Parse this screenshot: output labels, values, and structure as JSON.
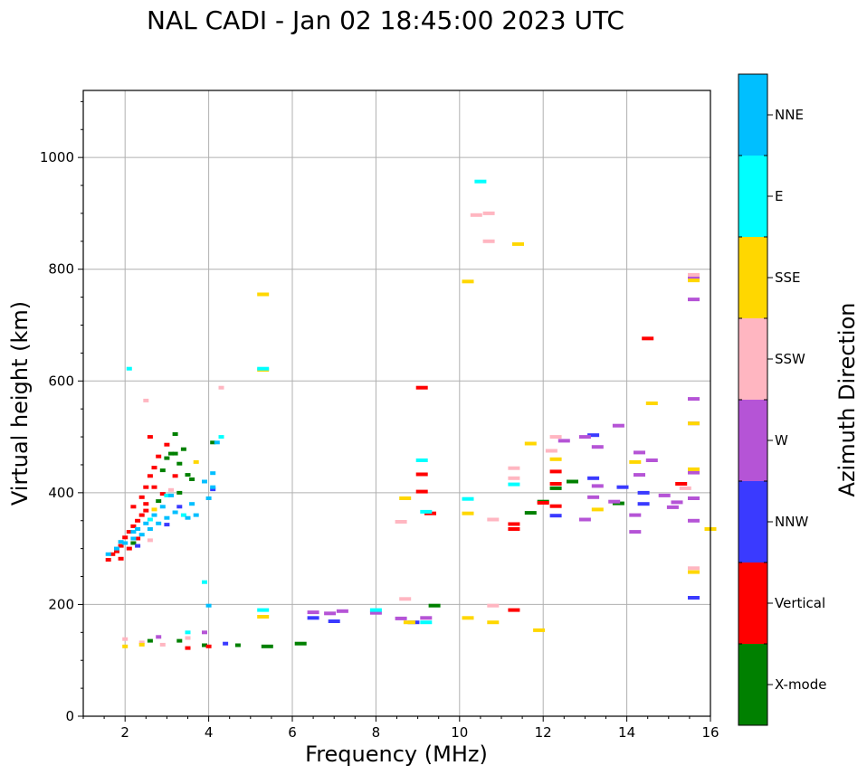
{
  "chart_data": {
    "type": "scatter",
    "title": "NAL CADI - Jan 02 18:45:00 2023 UTC",
    "xlabel": "Frequency (MHz)",
    "ylabel": "Virtual height (km)",
    "xlim": [
      1,
      16
    ],
    "ylim": [
      0,
      1120
    ],
    "xticks": [
      "2",
      "4",
      "6",
      "8",
      "10",
      "12",
      "14",
      "16"
    ],
    "yticks": [
      "0",
      "200",
      "400",
      "600",
      "800",
      "1000"
    ],
    "grid": true,
    "colorbar": {
      "label": "Azimuth Direction",
      "categories": [
        {
          "name": "X-mode",
          "color": "#008000"
        },
        {
          "name": "Vertical",
          "color": "#ff0000"
        },
        {
          "name": "NNW",
          "color": "#3a3aff"
        },
        {
          "name": "W",
          "color": "#b554d6"
        },
        {
          "name": "SSW",
          "color": "#ffb6c1"
        },
        {
          "name": "SSE",
          "color": "#ffd700"
        },
        {
          "name": "E",
          "color": "#00ffff"
        },
        {
          "name": "NNE",
          "color": "#00bfff"
        }
      ]
    },
    "series": [
      {
        "name": "X-mode",
        "points": [
          [
            3.0,
            462
          ],
          [
            3.5,
            432
          ],
          [
            3.3,
            400
          ],
          [
            4.1,
            490
          ],
          [
            3.2,
            470
          ],
          [
            2.9,
            440
          ],
          [
            3.6,
            424
          ],
          [
            12.7,
            420
          ],
          [
            12.0,
            384
          ],
          [
            13.8,
            381
          ],
          [
            9.4,
            198
          ],
          [
            11.7,
            364
          ],
          [
            6.2,
            130
          ],
          [
            4.7,
            127
          ],
          [
            5.4,
            125
          ],
          [
            3.3,
            135
          ],
          [
            3.9,
            127
          ],
          [
            2.6,
            135
          ],
          [
            3.1,
            470
          ],
          [
            2.8,
            385
          ],
          [
            3.3,
            452
          ],
          [
            2.2,
            310
          ],
          [
            12.3,
            408
          ],
          [
            3.2,
            505
          ],
          [
            3.4,
            478
          ]
        ]
      },
      {
        "name": "Vertical",
        "points": [
          [
            1.8,
            295
          ],
          [
            1.9,
            305
          ],
          [
            2.1,
            330
          ],
          [
            2.2,
            340
          ],
          [
            2.3,
            350
          ],
          [
            2.4,
            360
          ],
          [
            2.5,
            410
          ],
          [
            2.6,
            430
          ],
          [
            2.7,
            445
          ],
          [
            2.8,
            465
          ],
          [
            2.2,
            375
          ],
          [
            2.0,
            320
          ],
          [
            2.5,
            380
          ],
          [
            2.6,
            500
          ],
          [
            1.7,
            290
          ],
          [
            1.9,
            282
          ],
          [
            2.3,
            318
          ],
          [
            9.1,
            588
          ],
          [
            9.1,
            433
          ],
          [
            9.1,
            402
          ],
          [
            9.3,
            363
          ],
          [
            11.3,
            344
          ],
          [
            11.3,
            335
          ],
          [
            11.3,
            190
          ],
          [
            12.0,
            382
          ],
          [
            12.3,
            438
          ],
          [
            12.3,
            416
          ],
          [
            12.3,
            376
          ],
          [
            14.5,
            676
          ],
          [
            15.3,
            416
          ],
          [
            4.0,
            125
          ],
          [
            3.5,
            122
          ],
          [
            1.6,
            280
          ],
          [
            2.4,
            392
          ],
          [
            2.1,
            300
          ],
          [
            2.7,
            410
          ],
          [
            2.9,
            398
          ],
          [
            3.2,
            430
          ],
          [
            3.0,
            486
          ],
          [
            2.5,
            368
          ]
        ]
      },
      {
        "name": "NNW",
        "points": [
          [
            6.5,
            176
          ],
          [
            7.0,
            170
          ],
          [
            8.9,
            168
          ],
          [
            13.2,
            503
          ],
          [
            13.2,
            426
          ],
          [
            13.9,
            410
          ],
          [
            14.4,
            400
          ],
          [
            14.4,
            380
          ],
          [
            15.6,
            212
          ],
          [
            12.3,
            359
          ],
          [
            3.3,
            375
          ],
          [
            3.0,
            343
          ],
          [
            4.1,
            406
          ],
          [
            2.3,
            305
          ],
          [
            4.4,
            130
          ]
        ]
      },
      {
        "name": "W",
        "points": [
          [
            6.5,
            186
          ],
          [
            6.9,
            184
          ],
          [
            7.2,
            188
          ],
          [
            8.0,
            185
          ],
          [
            8.6,
            175
          ],
          [
            9.2,
            176
          ],
          [
            13.0,
            500
          ],
          [
            13.3,
            482
          ],
          [
            13.8,
            520
          ],
          [
            14.3,
            472
          ],
          [
            14.3,
            432
          ],
          [
            14.6,
            458
          ],
          [
            14.2,
            360
          ],
          [
            14.2,
            330
          ],
          [
            15.6,
            568
          ],
          [
            15.6,
            524
          ],
          [
            15.6,
            436
          ],
          [
            15.6,
            390
          ],
          [
            15.6,
            350
          ],
          [
            15.6,
            746
          ],
          [
            15.6,
            784
          ],
          [
            12.5,
            493
          ],
          [
            13.0,
            352
          ],
          [
            13.3,
            412
          ],
          [
            15.2,
            383
          ],
          [
            15.1,
            374
          ],
          [
            14.9,
            395
          ],
          [
            13.2,
            392
          ],
          [
            13.7,
            384
          ],
          [
            2.8,
            142
          ],
          [
            3.9,
            150
          ]
        ]
      },
      {
        "name": "SSW",
        "points": [
          [
            10.4,
            897
          ],
          [
            10.7,
            900
          ],
          [
            10.7,
            850
          ],
          [
            8.6,
            348
          ],
          [
            8.7,
            210
          ],
          [
            10.8,
            352
          ],
          [
            11.3,
            444
          ],
          [
            11.3,
            426
          ],
          [
            12.3,
            500
          ],
          [
            15.6,
            265
          ],
          [
            15.6,
            790
          ],
          [
            15.4,
            408
          ],
          [
            2.5,
            565
          ],
          [
            4.3,
            588
          ],
          [
            2.0,
            138
          ],
          [
            2.4,
            132
          ],
          [
            2.9,
            128
          ],
          [
            3.5,
            140
          ],
          [
            10.8,
            198
          ],
          [
            12.2,
            475
          ],
          [
            3.1,
            405
          ],
          [
            2.6,
            315
          ],
          [
            1.8,
            300
          ]
        ]
      },
      {
        "name": "SSE",
        "points": [
          [
            5.3,
            755
          ],
          [
            5.3,
            620
          ],
          [
            10.2,
            778
          ],
          [
            11.4,
            845
          ],
          [
            11.7,
            488
          ],
          [
            8.7,
            390
          ],
          [
            8.8,
            168
          ],
          [
            10.2,
            363
          ],
          [
            10.2,
            176
          ],
          [
            10.8,
            168
          ],
          [
            11.9,
            154
          ],
          [
            13.3,
            370
          ],
          [
            14.2,
            455
          ],
          [
            14.6,
            560
          ],
          [
            15.6,
            258
          ],
          [
            15.6,
            442
          ],
          [
            15.6,
            524
          ],
          [
            15.6,
            780
          ],
          [
            16.0,
            335
          ],
          [
            12.3,
            460
          ],
          [
            5.3,
            178
          ],
          [
            2.0,
            125
          ],
          [
            2.4,
            128
          ],
          [
            3.7,
            455
          ],
          [
            2.7,
            370
          ]
        ]
      },
      {
        "name": "E",
        "points": [
          [
            10.5,
            957
          ],
          [
            9.1,
            458
          ],
          [
            9.2,
            366
          ],
          [
            10.2,
            389
          ],
          [
            9.2,
            168
          ],
          [
            8.0,
            190
          ],
          [
            3.9,
            240
          ],
          [
            2.1,
            622
          ],
          [
            5.3,
            622
          ],
          [
            3.0,
            395
          ],
          [
            3.4,
            360
          ],
          [
            2.6,
            352
          ],
          [
            11.3,
            415
          ],
          [
            5.3,
            190
          ],
          [
            3.5,
            150
          ],
          [
            4.3,
            500
          ]
        ]
      },
      {
        "name": "NNE",
        "points": [
          [
            1.6,
            290
          ],
          [
            1.8,
            300
          ],
          [
            2.0,
            310
          ],
          [
            2.2,
            318
          ],
          [
            2.4,
            325
          ],
          [
            2.6,
            335
          ],
          [
            2.8,
            345
          ],
          [
            3.0,
            355
          ],
          [
            3.2,
            365
          ],
          [
            3.5,
            355
          ],
          [
            3.7,
            360
          ],
          [
            4.0,
            390
          ],
          [
            4.1,
            410
          ],
          [
            4.1,
            435
          ],
          [
            4.2,
            490
          ],
          [
            4.0,
            198
          ],
          [
            2.3,
            335
          ],
          [
            2.5,
            345
          ],
          [
            2.9,
            375
          ],
          [
            3.1,
            395
          ],
          [
            2.7,
            360
          ],
          [
            2.2,
            330
          ],
          [
            1.9,
            312
          ],
          [
            3.9,
            420
          ],
          [
            3.6,
            380
          ]
        ]
      }
    ]
  }
}
